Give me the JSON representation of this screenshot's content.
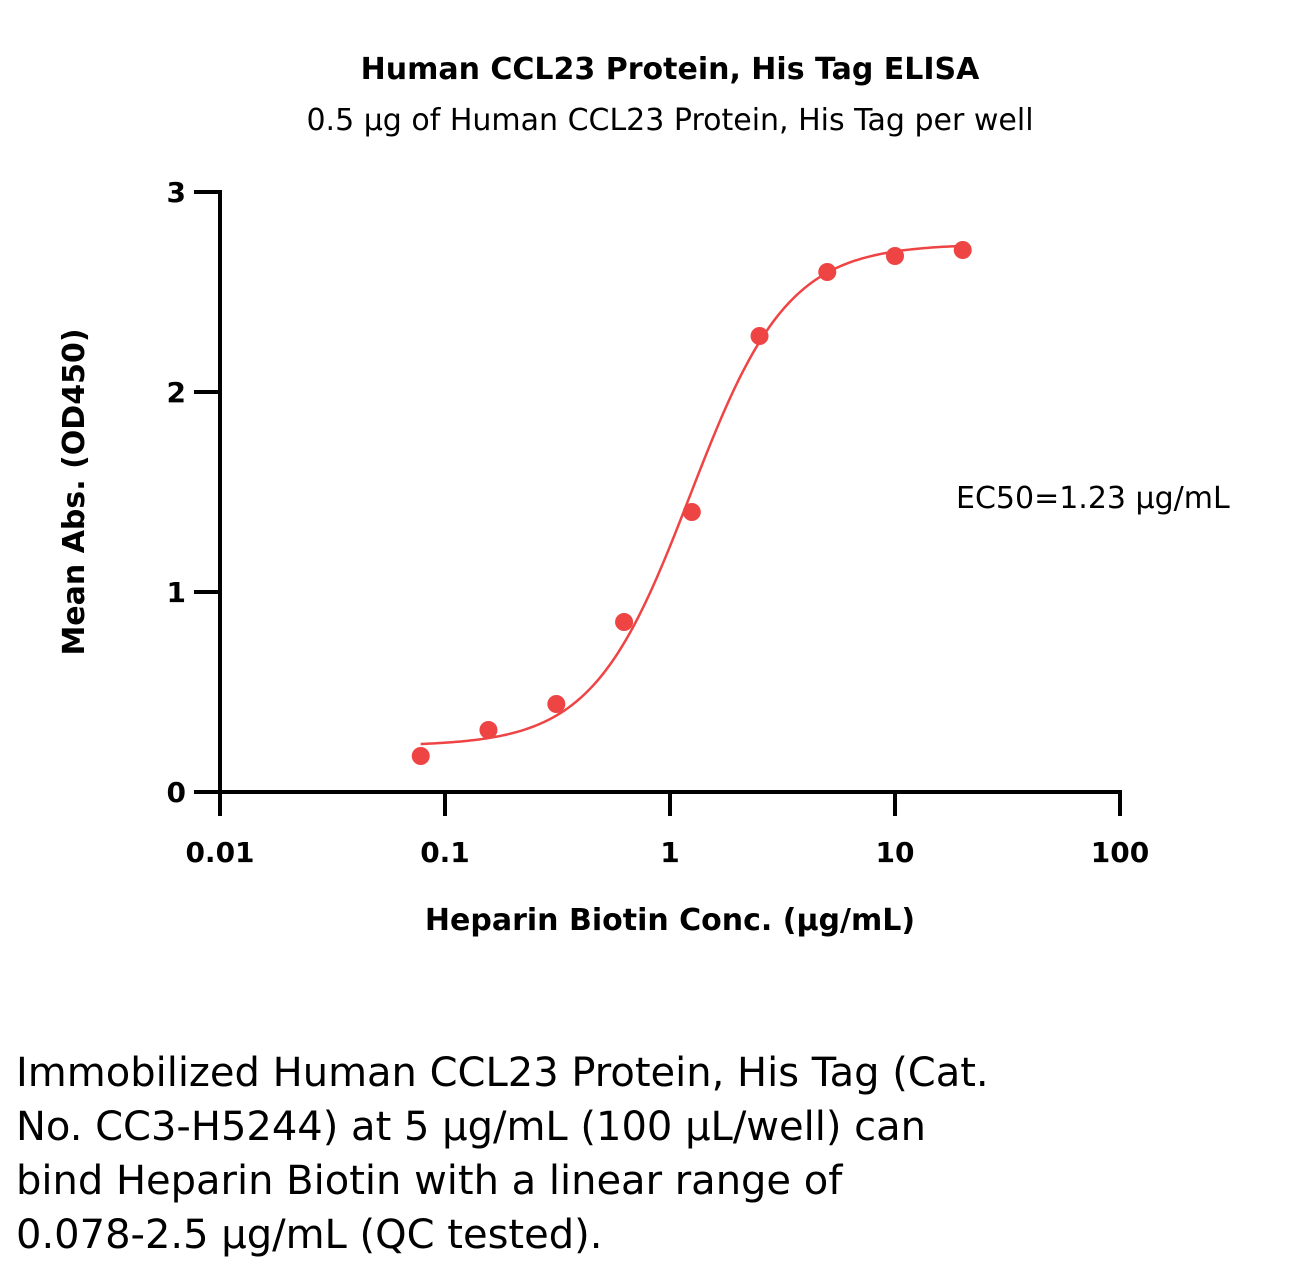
{
  "chart_data": {
    "type": "scatter",
    "title": "Human CCL23 Protein, His Tag ELISA",
    "subtitle": "0.5 µg of Human CCL23 Protein, His Tag per well",
    "xlabel": "Heparin Biotin Conc. (µg/mL)",
    "ylabel": "Mean Abs. (OD450)",
    "x_scale": "log",
    "xlim": [
      0.01,
      100
    ],
    "ylim": [
      0,
      3
    ],
    "x_ticks": [
      0.01,
      0.1,
      1,
      10,
      100
    ],
    "x_tick_labels": [
      "0.01",
      "0.1",
      "1",
      "10",
      "100"
    ],
    "y_ticks": [
      0,
      1,
      2,
      3
    ],
    "y_tick_labels": [
      "0",
      "1",
      "2",
      "3"
    ],
    "series": [
      {
        "color": "#ee4444",
        "x": [
          0.078,
          0.156,
          0.3125,
          0.625,
          1.25,
          2.5,
          5,
          10,
          20
        ],
        "y": [
          0.18,
          0.31,
          0.44,
          0.85,
          1.4,
          2.28,
          2.6,
          2.68,
          2.71
        ],
        "fit_curve": {
          "model": "4PL",
          "bottom": 0.23,
          "top": 2.74,
          "ec50": 1.23,
          "hill": 2.0
        }
      }
    ],
    "annotation": "EC50=1.23 µg/mL",
    "grid": false,
    "legend": "none"
  },
  "caption_lines": [
    "Immobilized Human CCL23 Protein, His Tag (Cat.",
    "No. CC3-H5244) at 5 µg/mL (100 µL/well) can",
    "bind Heparin Biotin with a linear range of",
    "0.078-2.5 µg/mL (QC tested)."
  ]
}
